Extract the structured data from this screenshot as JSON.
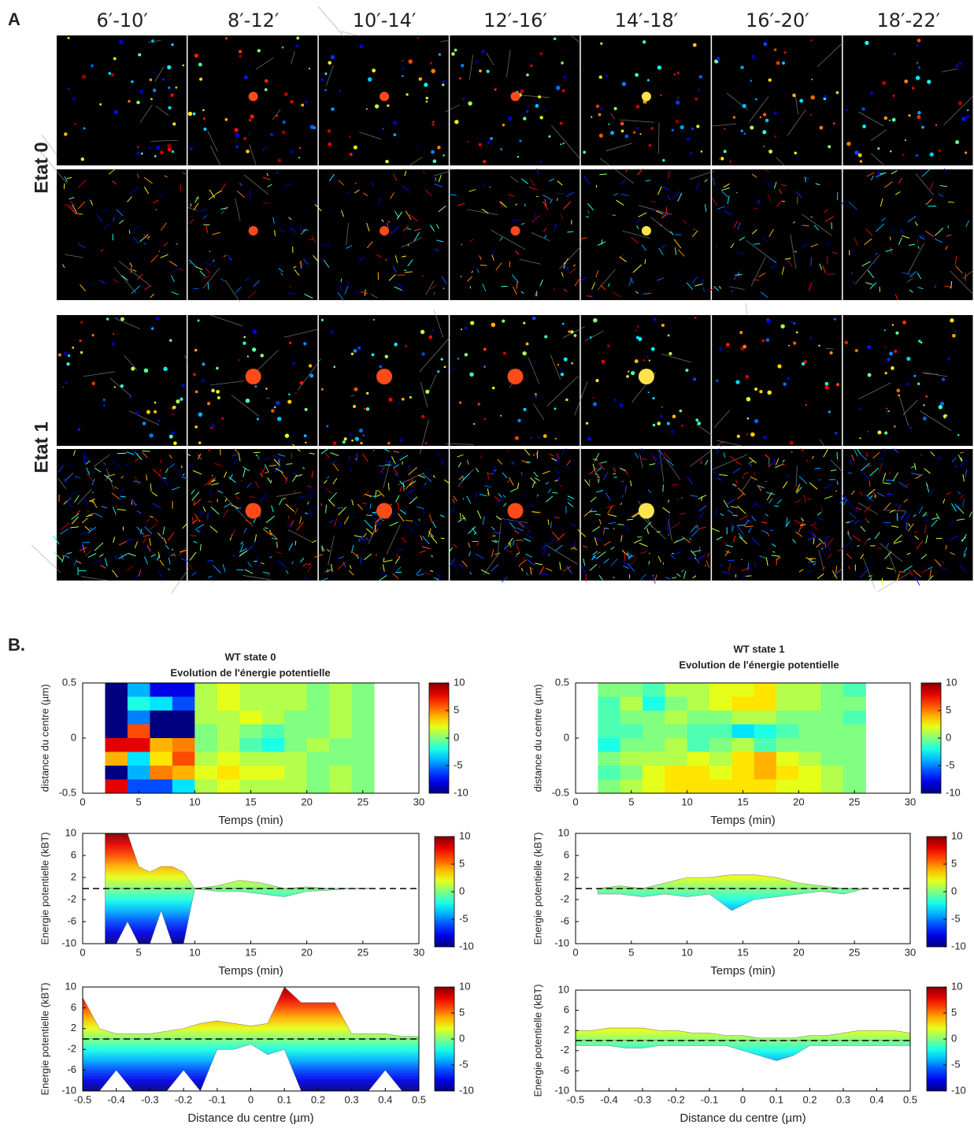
{
  "panel_a": {
    "label": "A",
    "columns": [
      "6′-10′",
      "8′-12′",
      "10′-14′",
      "12′-16′",
      "14′-18′",
      "16′-20′",
      "18′-22′"
    ],
    "rows": [
      "Etat 0",
      "Etat 1"
    ]
  },
  "panel_b": {
    "label": "B."
  },
  "chart_data": [
    {
      "type": "heatmap",
      "title": "WT state 0",
      "subtitle": "Evolution de l'énergie potentielle",
      "xlabel": "Temps (min)",
      "ylabel": "distance du centre (µm)",
      "xlim": [
        0,
        30
      ],
      "xticks": [
        0,
        5,
        10,
        15,
        20,
        25,
        30
      ],
      "ylim": [
        -0.5,
        0.5
      ],
      "yticks": [
        -0.5,
        0,
        0.5
      ],
      "x_edges": [
        2,
        4,
        6,
        8,
        10,
        12,
        14,
        16,
        18,
        20,
        22,
        24,
        26
      ],
      "y_edges": [
        0.5,
        0.375,
        0.25,
        0.125,
        0,
        -0.125,
        -0.25,
        -0.375,
        -0.5
      ],
      "values": [
        [
          -10,
          -4,
          -8,
          -8,
          1,
          2,
          1,
          1,
          1,
          0,
          1,
          0
        ],
        [
          -10,
          -2,
          -3,
          -6,
          1,
          2,
          1,
          1,
          1,
          0,
          1,
          0
        ],
        [
          -10,
          -5,
          -10,
          -10,
          1,
          1,
          2,
          1,
          0,
          0,
          1,
          0
        ],
        [
          -10,
          6,
          -10,
          -10,
          0,
          1,
          0,
          -1,
          0,
          0,
          1,
          0
        ],
        [
          8,
          8,
          4,
          5,
          0,
          1,
          -1,
          -2,
          0,
          1,
          0,
          0
        ],
        [
          4,
          -3,
          3,
          6,
          1,
          2,
          1,
          1,
          1,
          0,
          0,
          0
        ],
        [
          -10,
          -4,
          5,
          4,
          2,
          3,
          2,
          2,
          1,
          0,
          1,
          0
        ],
        [
          8,
          -6,
          -6,
          -3,
          1,
          2,
          1,
          1,
          1,
          0,
          1,
          0
        ]
      ],
      "colorbar": {
        "lim": [
          -10,
          10
        ],
        "ticks": [
          -10,
          -5,
          0,
          5,
          10
        ]
      }
    },
    {
      "type": "area",
      "xlabel": "Temps (min)",
      "ylabel": "Energie potentielle (kBT)",
      "xlim": [
        0,
        30
      ],
      "xticks": [
        0,
        5,
        10,
        15,
        20,
        25,
        30
      ],
      "ylim": [
        -10,
        10
      ],
      "yticks": [
        -10,
        -6,
        -2,
        2,
        6,
        10
      ],
      "x": [
        2,
        3,
        4,
        5,
        6,
        7,
        8,
        9,
        10,
        12,
        14,
        16,
        18,
        20,
        22,
        24,
        26
      ],
      "upper": [
        10,
        10,
        10,
        4,
        3,
        4,
        4,
        3,
        0,
        0.5,
        1.5,
        1,
        0,
        0.3,
        0,
        0,
        0
      ],
      "lower": [
        -10,
        -10,
        -6,
        -10,
        -10,
        -4,
        -10,
        -10,
        0,
        -0.5,
        -0.5,
        -1,
        -1.5,
        -0.5,
        -0.3,
        0,
        0
      ],
      "hline": 0,
      "colorbar": {
        "lim": [
          -10,
          10
        ],
        "ticks": [
          -10,
          -5,
          0,
          5,
          10
        ]
      }
    },
    {
      "type": "area",
      "xlabel": "Distance du centre (µm)",
      "ylabel": "Energie potentielle (kBT)",
      "xlim": [
        -0.5,
        0.5
      ],
      "xticks": [
        -0.5,
        -0.4,
        -0.3,
        -0.2,
        -0.1,
        0,
        0.1,
        0.2,
        0.3,
        0.4,
        0.5
      ],
      "ylim": [
        -10,
        10
      ],
      "yticks": [
        -10,
        -6,
        -2,
        2,
        6,
        10
      ],
      "x": [
        -0.5,
        -0.45,
        -0.4,
        -0.35,
        -0.3,
        -0.25,
        -0.2,
        -0.15,
        -0.1,
        -0.05,
        0,
        0.05,
        0.1,
        0.15,
        0.2,
        0.25,
        0.3,
        0.35,
        0.4,
        0.45,
        0.5
      ],
      "upper": [
        8,
        2,
        1,
        1,
        1,
        1.5,
        2,
        3,
        3.5,
        3,
        2.5,
        3,
        10,
        7,
        7,
        7,
        1,
        1,
        1,
        0.5,
        0.5
      ],
      "lower": [
        -10,
        -10,
        -6,
        -10,
        -10,
        -10,
        -6,
        -10,
        -2,
        -2,
        -1,
        -3,
        -2,
        -10,
        -10,
        -10,
        -10,
        -10,
        -6,
        -10,
        -10
      ],
      "hline": 0,
      "colorbar": {
        "lim": [
          -10,
          10
        ],
        "ticks": [
          -10,
          -5,
          0,
          5,
          10
        ]
      }
    },
    {
      "type": "heatmap",
      "title": "WT state 1",
      "subtitle": "Evolution de l'énergie potentielle",
      "xlabel": "Temps (min)",
      "ylabel": "distance du centre (µm)",
      "xlim": [
        0,
        30
      ],
      "xticks": [
        0,
        5,
        10,
        15,
        20,
        25,
        30
      ],
      "ylim": [
        -0.5,
        0.5
      ],
      "yticks": [
        -0.5,
        0,
        0.5
      ],
      "x_edges": [
        2,
        4,
        6,
        8,
        10,
        12,
        14,
        16,
        18,
        20,
        22,
        24,
        26
      ],
      "y_edges": [
        0.5,
        0.375,
        0.25,
        0.125,
        0,
        -0.125,
        -0.25,
        -0.375,
        -0.5
      ],
      "values": [
        [
          0,
          0,
          -1,
          1,
          1,
          2,
          2,
          3,
          1,
          1,
          0,
          -1
        ],
        [
          -1,
          1,
          -2,
          0,
          1,
          2,
          3,
          3,
          1,
          1,
          0,
          0
        ],
        [
          -1,
          0,
          0,
          1,
          0,
          0,
          1,
          1,
          0,
          0,
          0,
          -1
        ],
        [
          -1,
          -1,
          0,
          0,
          -1,
          -1,
          -3,
          -2,
          -1,
          0,
          0,
          0
        ],
        [
          -2,
          0,
          0,
          1,
          -1,
          0,
          1,
          -1,
          0,
          0,
          0,
          0
        ],
        [
          0,
          1,
          1,
          1,
          2,
          1,
          3,
          4,
          2,
          1,
          0,
          0
        ],
        [
          -1,
          0,
          2,
          3,
          3,
          2,
          3,
          4,
          3,
          2,
          1,
          0
        ],
        [
          0,
          1,
          2,
          3,
          3,
          3,
          3,
          3,
          2,
          2,
          1,
          0
        ]
      ],
      "colorbar": {
        "lim": [
          -10,
          10
        ],
        "ticks": [
          -10,
          -5,
          0,
          5,
          10
        ]
      }
    },
    {
      "type": "area",
      "xlabel": "Temps (min)",
      "ylabel": "Energie potentielle (kBT)",
      "xlim": [
        0,
        30
      ],
      "xticks": [
        0,
        5,
        10,
        15,
        20,
        25,
        30
      ],
      "ylim": [
        -10,
        10
      ],
      "yticks": [
        -10,
        -6,
        -2,
        2,
        6,
        10
      ],
      "x": [
        2,
        4,
        6,
        8,
        10,
        12,
        14,
        16,
        18,
        20,
        22,
        24,
        26
      ],
      "upper": [
        0,
        0.5,
        0,
        1,
        2,
        2,
        2.5,
        2.5,
        2,
        1,
        0.5,
        0,
        0
      ],
      "lower": [
        -1,
        -1,
        -1.5,
        -1,
        -1.5,
        -1,
        -4,
        -2,
        -1.5,
        -1,
        -0.5,
        -1,
        0
      ],
      "hline": 0,
      "colorbar": {
        "lim": [
          -10,
          10
        ],
        "ticks": [
          -10,
          -5,
          0,
          5,
          10
        ]
      }
    },
    {
      "type": "area",
      "xlabel": "Distance du centre (µm)",
      "ylabel": "Energie potentielle (kBT)",
      "xlim": [
        -0.5,
        0.5
      ],
      "xticks": [
        -0.5,
        -0.4,
        -0.3,
        -0.2,
        -0.1,
        0,
        0.1,
        0.2,
        0.3,
        0.4,
        0.5
      ],
      "ylim": [
        -10,
        10
      ],
      "yticks": [
        -10,
        -6,
        -2,
        2,
        6,
        10
      ],
      "x": [
        -0.5,
        -0.45,
        -0.4,
        -0.35,
        -0.3,
        -0.25,
        -0.2,
        -0.15,
        -0.1,
        -0.05,
        0,
        0.05,
        0.1,
        0.15,
        0.2,
        0.25,
        0.3,
        0.35,
        0.4,
        0.45,
        0.5
      ],
      "upper": [
        2,
        2,
        2.5,
        2.5,
        2.5,
        2,
        2,
        1.5,
        1.5,
        1,
        1,
        0.5,
        0.5,
        0.5,
        1,
        1,
        1.5,
        2,
        2,
        2,
        1.5
      ],
      "lower": [
        -1,
        -1,
        -1,
        -1.5,
        -1.5,
        -1,
        -1,
        -1,
        -1,
        -1,
        -2,
        -3,
        -4,
        -3,
        -1,
        -1,
        -1,
        -1,
        -1,
        -1,
        -1
      ],
      "hline": 0,
      "colorbar": {
        "lim": [
          -10,
          10
        ],
        "ticks": [
          -10,
          -5,
          0,
          5,
          10
        ]
      }
    }
  ]
}
